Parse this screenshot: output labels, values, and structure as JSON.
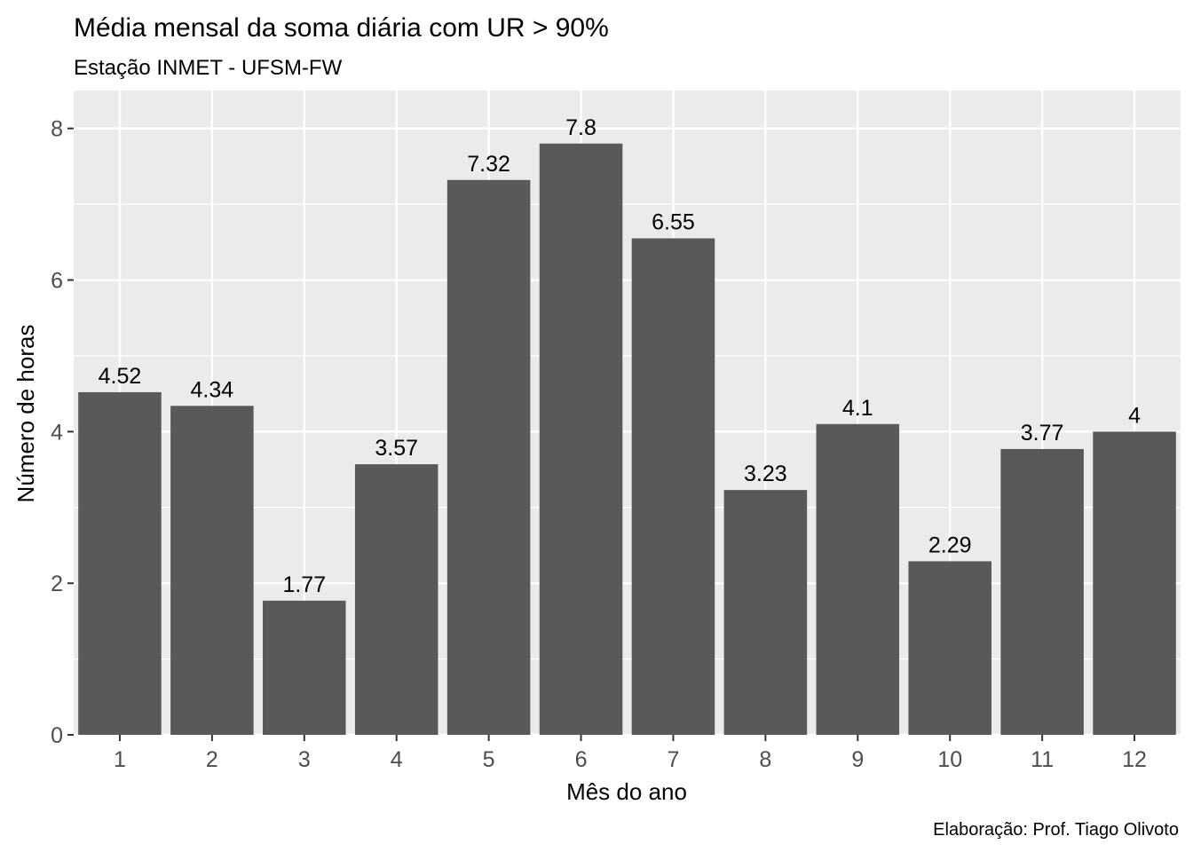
{
  "chart_data": {
    "type": "bar",
    "title": "Média mensal da soma diária com UR > 90%",
    "subtitle": "Estação INMET - UFSM-FW",
    "xlabel": "Mês do ano",
    "ylabel": "Número de horas",
    "caption": "Elaboração: Prof. Tiago Olivoto",
    "categories": [
      "1",
      "2",
      "3",
      "4",
      "5",
      "6",
      "7",
      "8",
      "9",
      "10",
      "11",
      "12"
    ],
    "values": [
      4.52,
      4.34,
      1.77,
      3.57,
      7.32,
      7.8,
      6.55,
      3.23,
      4.1,
      2.29,
      3.77,
      4
    ],
    "value_labels": [
      "4.52",
      "4.34",
      "1.77",
      "3.57",
      "7.32",
      "7.8",
      "6.55",
      "3.23",
      "4.1",
      "2.29",
      "3.77",
      "4"
    ],
    "ylim": [
      0,
      8.5
    ],
    "yticks": [
      0,
      2,
      4,
      6,
      8
    ],
    "grid": true,
    "colors": {
      "bar": "#595959",
      "panel": "#ebebeb",
      "grid": "#ffffff"
    }
  }
}
